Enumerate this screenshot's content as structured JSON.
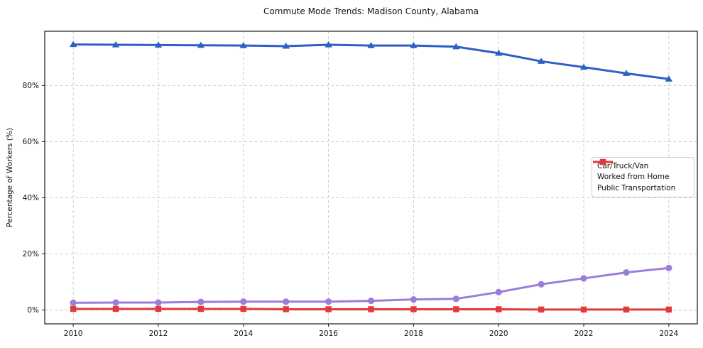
{
  "chart_data": {
    "type": "line",
    "title": "Commute Mode Trends: Madison County, Alabama",
    "xlabel": "",
    "ylabel": "Percentage of Workers (%)",
    "x": [
      2010,
      2011,
      2012,
      2013,
      2014,
      2015,
      2016,
      2017,
      2018,
      2019,
      2020,
      2021,
      2022,
      2023,
      2024
    ],
    "x_ticks": [
      2010,
      2012,
      2014,
      2016,
      2018,
      2020,
      2022,
      2024
    ],
    "x_tick_labels": [
      "2010",
      "2012",
      "2014",
      "2016",
      "2018",
      "2020",
      "2022",
      "2024"
    ],
    "y_ticks": [
      0,
      20,
      40,
      60,
      80
    ],
    "y_tick_labels": [
      "0%",
      "20%",
      "40%",
      "60%",
      "80%"
    ],
    "xlim": [
      2009.33,
      2024.67
    ],
    "ylim": [
      -4.9,
      99.3
    ],
    "grid": true,
    "grid_style": "dashed",
    "legend_position": "center-right",
    "series": [
      {
        "name": "Car/Truck/Van",
        "color": "#2e5fc5",
        "marker": "triangle",
        "values": [
          94.6,
          94.5,
          94.4,
          94.3,
          94.2,
          94.0,
          94.5,
          94.2,
          94.2,
          93.8,
          91.5,
          88.6,
          86.5,
          84.3,
          82.3
        ]
      },
      {
        "name": "Worked from Home",
        "color": "#9b7ddb",
        "marker": "circle",
        "values": [
          2.6,
          2.7,
          2.7,
          2.9,
          3.0,
          3.0,
          3.0,
          3.3,
          3.8,
          4.0,
          6.4,
          9.2,
          11.3,
          13.4,
          15.0
        ]
      },
      {
        "name": "Public Transportation",
        "color": "#e23a3a",
        "marker": "square",
        "values": [
          0.4,
          0.4,
          0.4,
          0.4,
          0.4,
          0.3,
          0.3,
          0.3,
          0.3,
          0.3,
          0.3,
          0.2,
          0.2,
          0.2,
          0.2
        ]
      }
    ],
    "colors": {
      "grid": "#c8c8c8",
      "axis_border": "#1a1a1a",
      "text": "#111111",
      "background": "#ffffff"
    }
  }
}
